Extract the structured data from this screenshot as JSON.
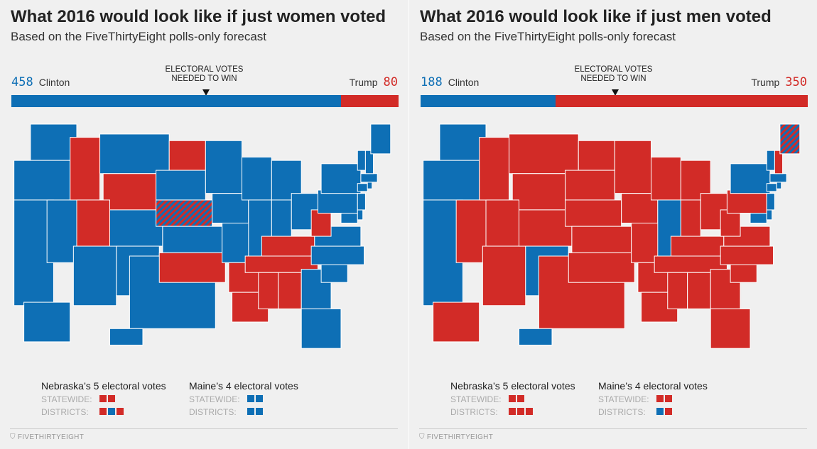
{
  "colors": {
    "clinton": "#0e6fb5",
    "trump": "#d22b27"
  },
  "chart_data": [
    {
      "type": "map",
      "title": "What 2016 would look like if just women voted",
      "subtitle": "Based on the FiveThirtyEight polls-only forecast",
      "clinton_votes": "458",
      "trump_votes": "80",
      "clinton_label": "Clinton",
      "trump_label": "Trump",
      "needed_label": "ELECTORAL VOTES\nNEEDED TO WIN",
      "total": 538,
      "needed": 270,
      "red_states": [
        "ID",
        "UT",
        "WY",
        "ND",
        "OK",
        "AR",
        "LA",
        "MS",
        "AL",
        "TN",
        "KY",
        "WV"
      ],
      "split_states": [
        "NE"
      ],
      "legend": {
        "ne_title": "Nebraska’s 5 electoral votes",
        "me_title": "Maine’s 4 electoral votes",
        "statewide": "STATEWIDE:",
        "districts": "DISTRICTS:",
        "ne_statewide": [
          "R",
          "R"
        ],
        "ne_districts": [
          "R",
          "D",
          "R"
        ],
        "me_statewide": [
          "D",
          "D"
        ],
        "me_districts": [
          "D",
          "D"
        ]
      },
      "footer": "FIVETHIRTYEIGHT"
    },
    {
      "type": "map",
      "title": "What 2016 would look like if just men voted",
      "subtitle": "Based on the FiveThirtyEight polls-only forecast",
      "clinton_votes": "188",
      "trump_votes": "350",
      "clinton_label": "Clinton",
      "trump_label": "Trump",
      "needed_label": "ELECTORAL VOTES\nNEEDED TO WIN",
      "total": 538,
      "needed": 270,
      "blue_states": [
        "WA",
        "OR",
        "CA",
        "NM",
        "IL",
        "NY",
        "VT",
        "MA",
        "CT",
        "RI",
        "NJ",
        "DE",
        "MD",
        "HI"
      ],
      "split_states": [
        "ME"
      ],
      "legend": {
        "ne_title": "Nebraska’s 5 electoral votes",
        "me_title": "Maine’s 4 electoral votes",
        "statewide": "STATEWIDE:",
        "districts": "DISTRICTS:",
        "ne_statewide": [
          "R",
          "R"
        ],
        "ne_districts": [
          "R",
          "R",
          "R"
        ],
        "me_statewide": [
          "R",
          "R"
        ],
        "me_districts": [
          "D",
          "R"
        ]
      },
      "footer": "FIVETHIRTYEIGHT"
    }
  ]
}
